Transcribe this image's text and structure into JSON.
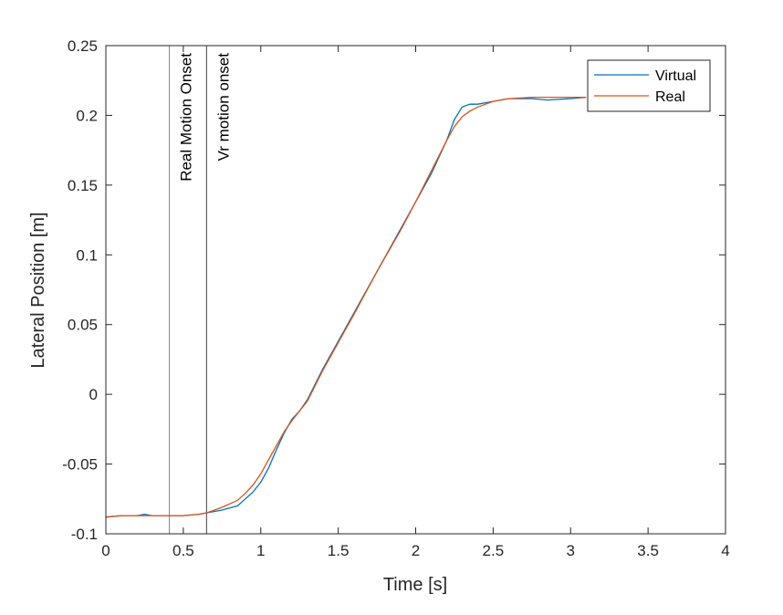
{
  "chart_data": {
    "type": "line",
    "title": "",
    "xlabel": "Time [s]",
    "ylabel": "Lateral Position [m]",
    "xlim": [
      0,
      4
    ],
    "ylim": [
      -0.1,
      0.25
    ],
    "xticks": [
      0,
      0.5,
      1,
      1.5,
      2,
      2.5,
      3,
      3.5,
      4
    ],
    "xtick_labels": [
      "0",
      "0.5",
      "1",
      "1.5",
      "2",
      "2.5",
      "3",
      "3.5",
      "4"
    ],
    "yticks": [
      -0.1,
      -0.05,
      0,
      0.05,
      0.1,
      0.15,
      0.2,
      0.25
    ],
    "ytick_labels": [
      "-0.1",
      "-0.05",
      "0",
      "0.05",
      "0.1",
      "0.15",
      "0.2",
      "0.25"
    ],
    "grid": false,
    "legend_position": "northeast",
    "series": [
      {
        "name": "Virtual",
        "color": "#0072BD",
        "x": [
          0,
          0.1,
          0.2,
          0.25,
          0.3,
          0.4,
          0.5,
          0.6,
          0.65,
          0.75,
          0.85,
          0.9,
          0.95,
          1.0,
          1.05,
          1.1,
          1.15,
          1.2,
          1.25,
          1.3,
          1.4,
          1.5,
          1.6,
          1.75,
          1.9,
          2.0,
          2.1,
          2.2,
          2.25,
          2.3,
          2.35,
          2.4,
          2.5,
          2.6,
          2.75,
          2.85,
          3.0,
          3.1
        ],
        "y": [
          -0.088,
          -0.087,
          -0.087,
          -0.086,
          -0.087,
          -0.087,
          -0.087,
          -0.086,
          -0.085,
          -0.083,
          -0.08,
          -0.075,
          -0.07,
          -0.063,
          -0.053,
          -0.04,
          -0.028,
          -0.018,
          -0.012,
          -0.004,
          0.018,
          0.038,
          0.058,
          0.088,
          0.118,
          0.138,
          0.158,
          0.182,
          0.197,
          0.206,
          0.208,
          0.208,
          0.21,
          0.212,
          0.212,
          0.211,
          0.212,
          0.213
        ]
      },
      {
        "name": "Real",
        "color": "#D95319",
        "x": [
          0,
          0.1,
          0.2,
          0.3,
          0.4,
          0.5,
          0.6,
          0.65,
          0.75,
          0.85,
          0.9,
          0.95,
          1.0,
          1.05,
          1.1,
          1.15,
          1.2,
          1.25,
          1.3,
          1.4,
          1.5,
          1.6,
          1.75,
          1.9,
          2.0,
          2.1,
          2.2,
          2.25,
          2.3,
          2.35,
          2.4,
          2.5,
          2.6,
          2.75,
          2.85,
          3.0,
          3.1
        ],
        "y": [
          -0.088,
          -0.087,
          -0.087,
          -0.087,
          -0.087,
          -0.087,
          -0.086,
          -0.085,
          -0.081,
          -0.076,
          -0.071,
          -0.065,
          -0.057,
          -0.047,
          -0.037,
          -0.027,
          -0.019,
          -0.012,
          -0.005,
          0.017,
          0.037,
          0.057,
          0.088,
          0.117,
          0.138,
          0.16,
          0.182,
          0.192,
          0.199,
          0.203,
          0.206,
          0.21,
          0.212,
          0.213,
          0.213,
          0.213,
          0.213
        ]
      }
    ],
    "annotations": [
      {
        "type": "vline",
        "x": 0.41,
        "label": "Real Motion Onset",
        "color": "#808080"
      },
      {
        "type": "vline",
        "x": 0.65,
        "label": "Vr motion onset",
        "color": "#404040"
      }
    ]
  },
  "legend": {
    "items": [
      {
        "label": "Virtual",
        "color": "#0072BD"
      },
      {
        "label": "Real",
        "color": "#D95319"
      }
    ]
  }
}
